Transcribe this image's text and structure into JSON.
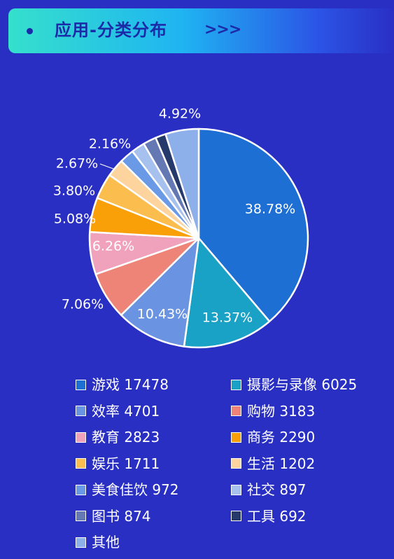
{
  "header": {
    "title": "应用-分类分布",
    "arrows": ">>>"
  },
  "chart_data": {
    "type": "pie",
    "slices": [
      {
        "label": "游戏",
        "value": 17478,
        "percent_label": "38.78%",
        "color": "#1d6fd4"
      },
      {
        "label": "摄影与录像",
        "value": 6025,
        "percent_label": "13.37%",
        "color": "#1aa1c6"
      },
      {
        "label": "效率",
        "value": 4701,
        "percent_label": "10.43%",
        "color": "#6a94e2"
      },
      {
        "label": "购物",
        "value": 3183,
        "percent_label": "7.06%",
        "color": "#ee8478"
      },
      {
        "label": "教育",
        "value": 2823,
        "percent_label": "6.26%",
        "color": "#f0a2bd"
      },
      {
        "label": "商务",
        "value": 2290,
        "percent_label": "5.08%",
        "color": "#f99f08"
      },
      {
        "label": "娱乐",
        "value": 1711,
        "percent_label": "3.80%",
        "color": "#fbbe4e"
      },
      {
        "label": "生活",
        "value": 1202,
        "percent_label": "2.67%",
        "color": "#fdd49e"
      },
      {
        "label": "美食佳饮",
        "value": 972,
        "percent_label": "2.16%",
        "color": "#6a9ae6"
      },
      {
        "label": "社交",
        "value": 897,
        "percent_label": "",
        "color": "#a7c1ee"
      },
      {
        "label": "图书",
        "value": 874,
        "percent_label": "",
        "color": "#6478b4"
      },
      {
        "label": "工具",
        "value": 692,
        "percent_label": "",
        "color": "#253a6a"
      },
      {
        "label": "其他",
        "value": 2218,
        "percent_label": "4.92%",
        "color": "#8db0ea"
      }
    ],
    "legend": [
      {
        "text": "游戏 17478",
        "color": "#1d6fd4"
      },
      {
        "text": "摄影与录像 6025",
        "color": "#1aa1c6"
      },
      {
        "text": "效率 4701",
        "color": "#6a94e2"
      },
      {
        "text": "购物 3183",
        "color": "#ee8478"
      },
      {
        "text": "教育 2823",
        "color": "#f0a2bd"
      },
      {
        "text": "商务 2290",
        "color": "#f99f08"
      },
      {
        "text": "娱乐 1711",
        "color": "#fbbe4e"
      },
      {
        "text": "生活 1202",
        "color": "#fdd49e"
      },
      {
        "text": "美食佳饮 972",
        "color": "#6a9ae6"
      },
      {
        "text": "社交 897",
        "color": "#a7c1ee"
      },
      {
        "text": "图书 874",
        "color": "#6478b4"
      },
      {
        "text": "工具 692",
        "color": "#253a6a"
      },
      {
        "text": "其他",
        "color": "#8db0ea"
      }
    ],
    "legend_placement": "bottom"
  }
}
